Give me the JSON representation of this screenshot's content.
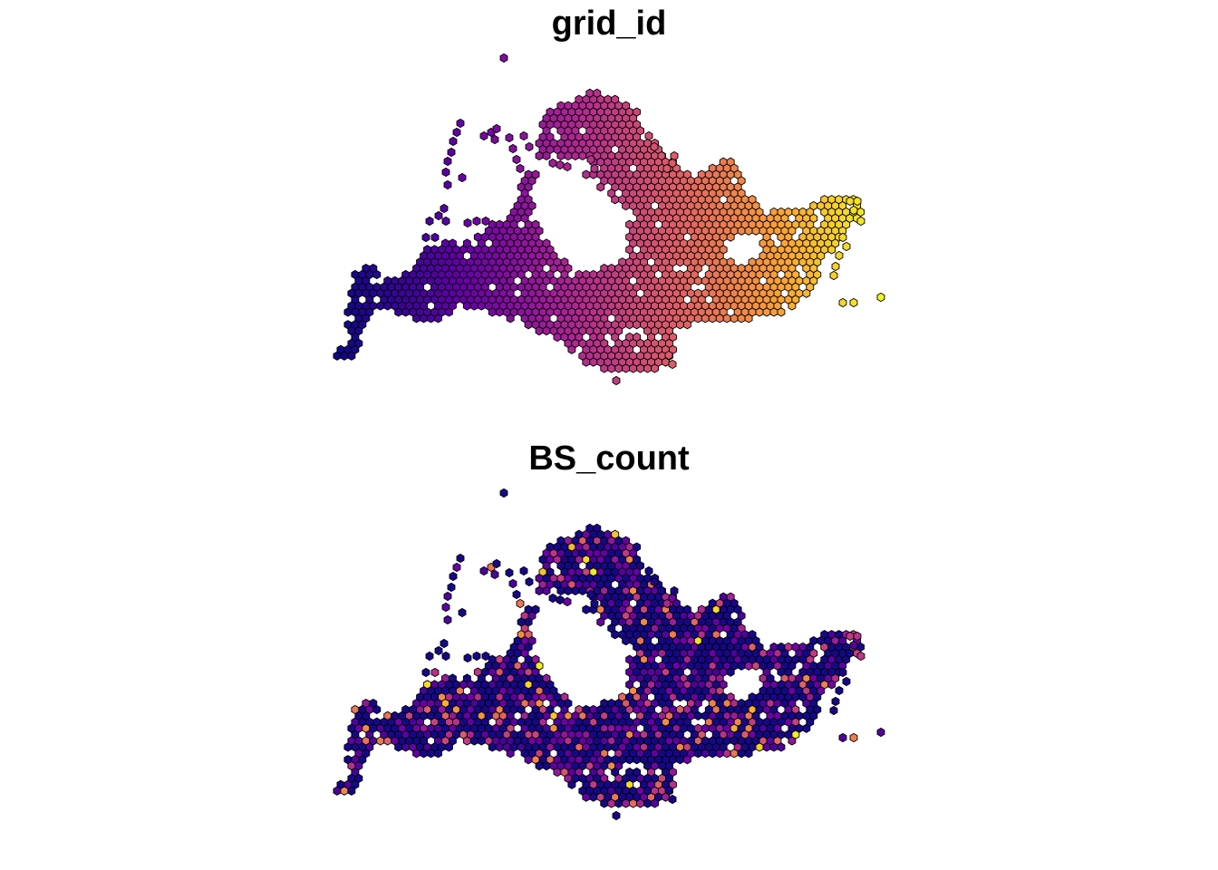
{
  "panels": [
    {
      "title": "grid_id",
      "palette": [
        "#0d0887",
        "#6a00a8",
        "#b12a90",
        "#e16462",
        "#fca636",
        "#f0f921"
      ]
    },
    {
      "title": "BS_count",
      "palette": [
        "#0d0887",
        "#6a00a8",
        "#b12a90",
        "#e16462",
        "#fca636",
        "#f0f921"
      ]
    }
  ]
}
